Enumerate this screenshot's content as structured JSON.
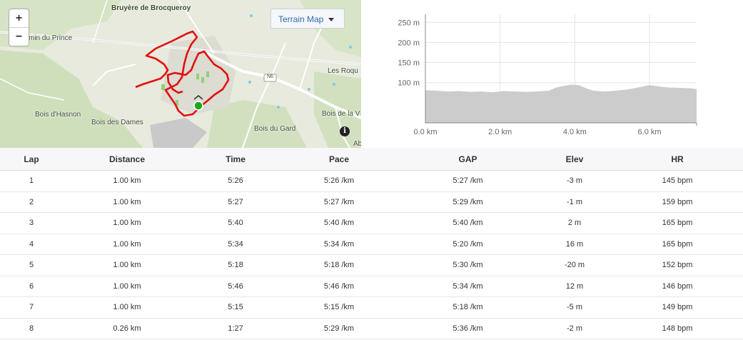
{
  "map": {
    "zoom_in": "+",
    "zoom_out": "−",
    "layer_button": "Terrain Map",
    "info_icon": "i",
    "labels": {
      "bruyere": "Bruyère de Brocqueroy",
      "chemin": "min du Prince",
      "bois_hasnon": "Bois d'Hasnon",
      "bois_dames": "Bois des Dames",
      "bois_gard": "Bois du Gard",
      "bois_la": "Bois de la V",
      "les_roq": "Les Roqu",
      "ab": "Ab",
      "n6": "N6"
    },
    "colors": {
      "route": "#e30f0f",
      "start_marker": "#1fa51f"
    }
  },
  "elevation_chart": {
    "chart_data": {
      "type": "area",
      "y_ticks": [
        "250 m",
        "200 m",
        "150 m",
        "100 m"
      ],
      "x_ticks": [
        "0.0 km",
        "2.0 km",
        "4.0 km",
        "6.0 km"
      ],
      "ylim": [
        0,
        270
      ],
      "xlim": [
        0,
        7.26
      ],
      "x": [
        0,
        0.3,
        0.6,
        0.9,
        1.2,
        1.5,
        1.8,
        2.1,
        2.4,
        2.7,
        3.0,
        3.3,
        3.5,
        3.7,
        3.9,
        4.1,
        4.3,
        4.5,
        4.8,
        5.1,
        5.4,
        5.7,
        6.0,
        6.2,
        6.5,
        6.8,
        7.1,
        7.26
      ],
      "values": [
        81,
        80,
        78,
        79,
        77,
        78,
        76,
        79,
        78,
        77,
        78,
        80,
        88,
        92,
        95,
        94,
        86,
        80,
        78,
        80,
        83,
        88,
        94,
        91,
        88,
        87,
        86,
        84
      ],
      "color": "#cccccc",
      "grid": true
    }
  },
  "table": {
    "headers": [
      "Lap",
      "Distance",
      "Time",
      "Pace",
      "GAP",
      "Elev",
      "HR"
    ],
    "rows": [
      [
        "1",
        "1.00 km",
        "5:26",
        "5:26 /km",
        "5:27 /km",
        "-3 m",
        "145 bpm"
      ],
      [
        "2",
        "1.00 km",
        "5:27",
        "5:27 /km",
        "5:29 /km",
        "-1 m",
        "159 bpm"
      ],
      [
        "3",
        "1.00 km",
        "5:40",
        "5:40 /km",
        "5:40 /km",
        "2 m",
        "165 bpm"
      ],
      [
        "4",
        "1.00 km",
        "5:34",
        "5:34 /km",
        "5:20 /km",
        "16 m",
        "165 bpm"
      ],
      [
        "5",
        "1.00 km",
        "5:18",
        "5:18 /km",
        "5:30 /km",
        "-20 m",
        "152 bpm"
      ],
      [
        "6",
        "1.00 km",
        "5:46",
        "5:46 /km",
        "5:34 /km",
        "12 m",
        "146 bpm"
      ],
      [
        "7",
        "1.00 km",
        "5:15",
        "5:15 /km",
        "5:18 /km",
        "-5 m",
        "149 bpm"
      ],
      [
        "8",
        "0.26 km",
        "1:27",
        "5:29 /km",
        "5:36 /km",
        "-2 m",
        "148 bpm"
      ]
    ]
  }
}
